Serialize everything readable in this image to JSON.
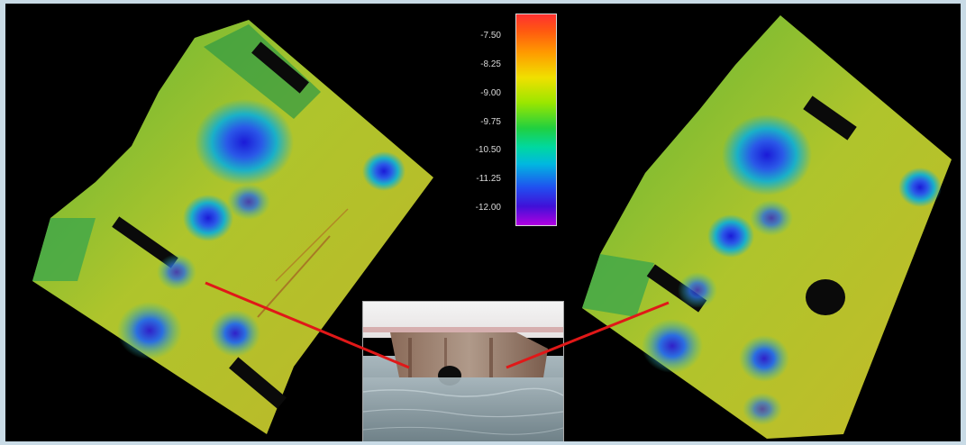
{
  "colorbar": {
    "ticks": [
      "-7.50",
      "-8.25",
      "-9.00",
      "-9.75",
      "-10.50",
      "-11.25",
      "-12.00"
    ],
    "colors": [
      "#ff3030",
      "#f0e000",
      "#20d040",
      "#00b8e0",
      "#2050f0",
      "#b000e0"
    ]
  },
  "scans": [
    {
      "name": "left-bathymetry-scan",
      "base_color": "#c7cf34"
    },
    {
      "name": "right-bathymetry-scan",
      "base_color": "#c7cf34"
    }
  ],
  "photo": {
    "name": "pier-photo"
  },
  "connector_color": "#e01818"
}
